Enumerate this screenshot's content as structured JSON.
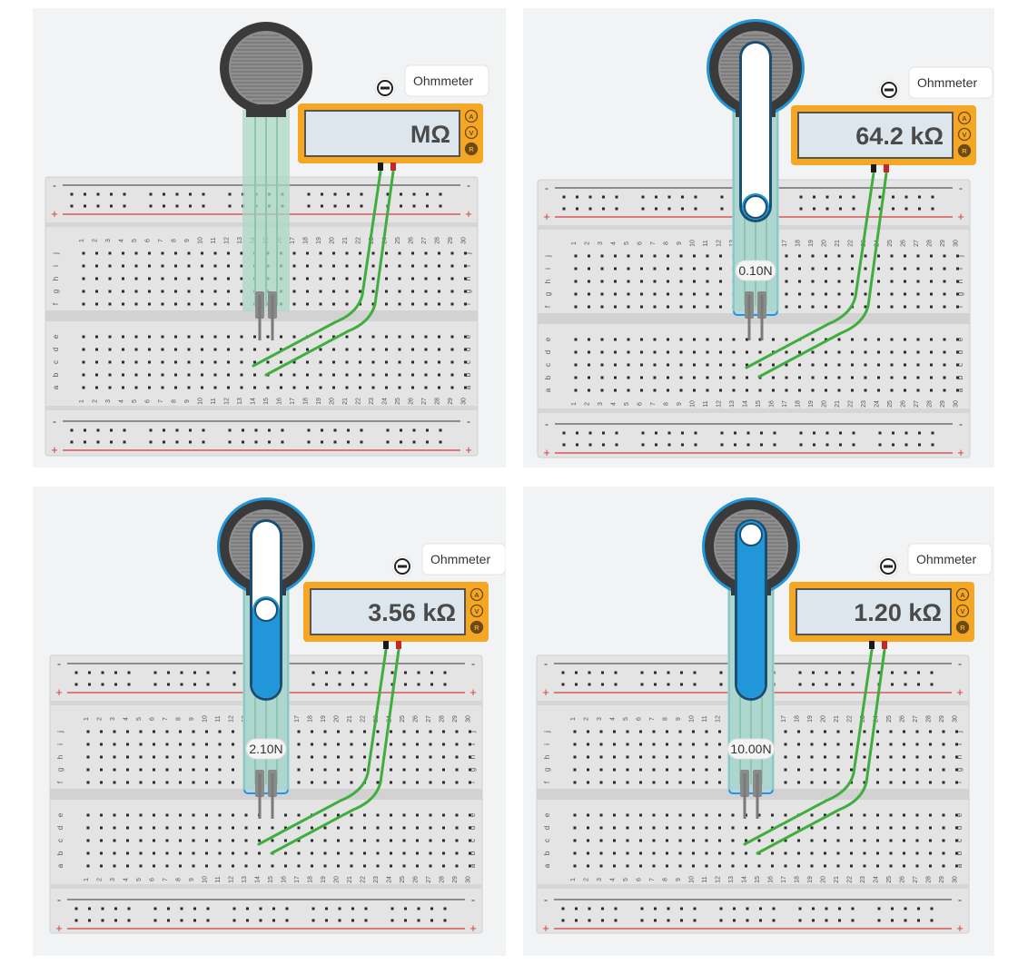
{
  "meter_label": "Ohmmeter",
  "meter_mode_buttons": [
    "A",
    "V",
    "R"
  ],
  "rows_top": [
    "j",
    "i",
    "h",
    "g",
    "f"
  ],
  "rows_bottom": [
    "e",
    "d",
    "c",
    "b",
    "a"
  ],
  "rail_minus": "-",
  "rail_plus": "+",
  "columns": [
    "1",
    "2",
    "3",
    "4",
    "5",
    "6",
    "7",
    "8",
    "9",
    "10",
    "11",
    "12",
    "13",
    "14",
    "15",
    "16",
    "17",
    "18",
    "19",
    "20",
    "21",
    "22",
    "23",
    "24",
    "25",
    "26",
    "27",
    "28",
    "29",
    "30"
  ],
  "colors": {
    "panel_bg": "#f1f3f4",
    "breadboard": "#e6e6e6",
    "meter_body": "#f5a623",
    "meter_screen": "#dde6ec",
    "sensor_active": "#2196d8",
    "wire": "#3fae3f",
    "rail_red": "#d33a3a"
  },
  "panels": [
    {
      "id": "panel-1",
      "reading": "MΩ",
      "force_label": "",
      "force_level": null
    },
    {
      "id": "panel-2",
      "reading": "64.2 kΩ",
      "force_label": "0.10N",
      "force_level": 0.0
    },
    {
      "id": "panel-3",
      "reading": "3.56 kΩ",
      "force_label": "2.10N",
      "force_level": 0.5
    },
    {
      "id": "panel-4",
      "reading": "1.20 kΩ",
      "force_label": "10.00N",
      "force_level": 1.0
    }
  ]
}
